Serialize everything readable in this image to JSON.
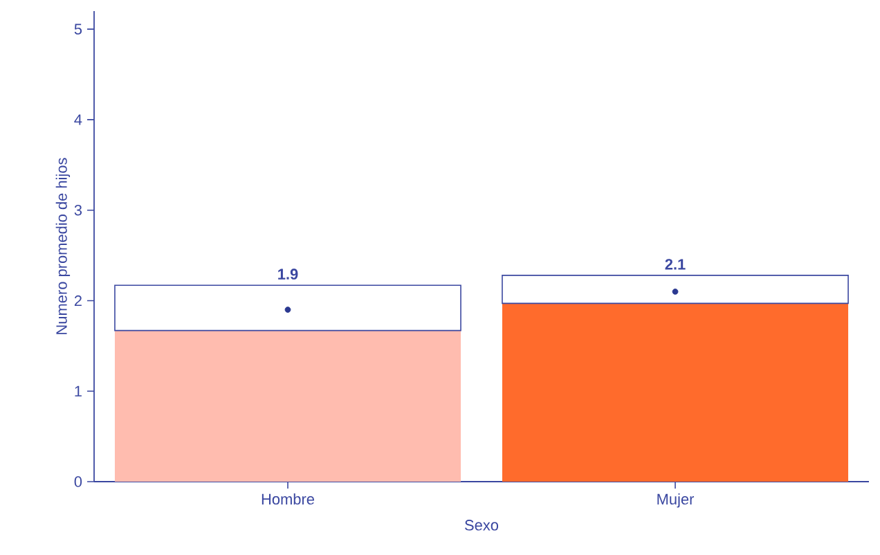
{
  "chart_data": {
    "type": "bar",
    "xlabel": "Sexo",
    "ylabel": "Numero promedio de hijos",
    "categories": [
      "Hombre",
      "Mujer"
    ],
    "stacked": true,
    "series": [
      {
        "colors": [
          "#ffbcaf",
          "#ff6b2c"
        ],
        "values": [
          1.67,
          1.97
        ]
      },
      {
        "color": "#ffffff",
        "values": [
          0.5,
          0.31
        ]
      },
      {
        "type": "scatter",
        "color": "#2b3990",
        "x": [
          "Hombre",
          "Mujer"
        ],
        "values": [
          1.9,
          2.1
        ],
        "value_labels": [
          "1.9",
          "2.1"
        ]
      }
    ],
    "ylim": [
      0,
      5.2
    ],
    "yticks": [
      0,
      1,
      2,
      3,
      4,
      5
    ],
    "grid": false
  }
}
